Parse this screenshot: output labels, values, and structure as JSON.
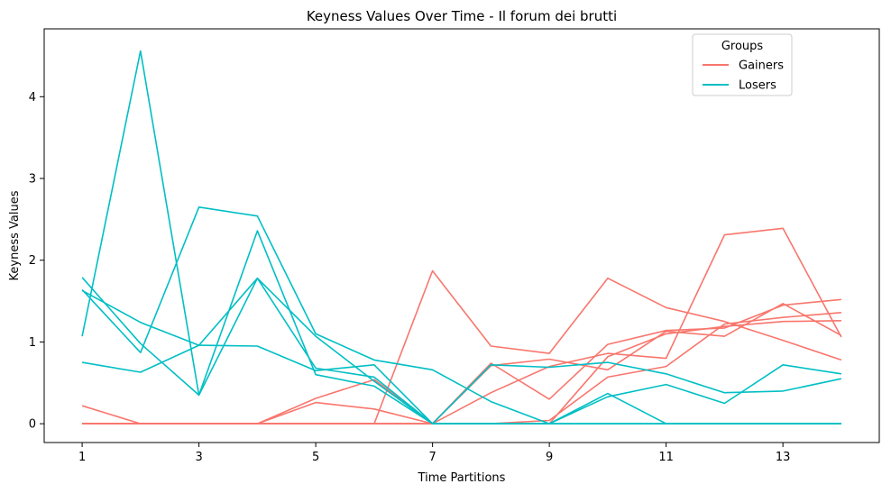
{
  "chart_data": {
    "type": "line",
    "title": "Keyness Values Over Time - Il forum dei brutti",
    "xlabel": "Time Partitions",
    "ylabel": "Keyness Values",
    "x": [
      1,
      2,
      3,
      4,
      5,
      6,
      7,
      8,
      9,
      10,
      11,
      12,
      13,
      14
    ],
    "xticks": [
      "1",
      "3",
      "5",
      "7",
      "9",
      "11",
      "13"
    ],
    "yticks": [
      "0",
      "1",
      "2",
      "3",
      "4"
    ],
    "xlim": [
      0.35,
      14.65
    ],
    "ylim": [
      -0.23,
      4.83
    ],
    "grid": false,
    "legend": {
      "title": "Groups",
      "position": "top-right",
      "entries": [
        {
          "label": "Gainers",
          "color": "#f8766d"
        },
        {
          "label": "Losers",
          "color": "#00bfc4"
        }
      ]
    },
    "series": [
      {
        "group": "Gainers",
        "values": [
          0,
          0,
          0,
          0,
          0,
          0,
          1.87,
          0.95,
          0.86,
          1.78,
          1.42,
          1.25,
          1.02,
          0.78
        ]
      },
      {
        "group": "Gainers",
        "values": [
          0.22,
          0,
          0,
          0,
          0.26,
          0.18,
          0,
          0.38,
          0.7,
          0.86,
          0.8,
          2.31,
          2.39,
          1.06
        ]
      },
      {
        "group": "Gainers",
        "values": [
          0,
          0,
          0,
          0,
          0.31,
          0.54,
          0,
          0.74,
          0.3,
          0.97,
          1.14,
          1.17,
          1.45,
          1.52
        ]
      },
      {
        "group": "Gainers",
        "values": [
          0,
          0,
          0,
          0,
          0,
          0,
          0,
          0,
          0.04,
          0.57,
          0.7,
          1.22,
          1.3,
          1.36
        ]
      },
      {
        "group": "Gainers",
        "values": [
          0,
          0,
          0,
          0,
          0,
          0,
          0,
          0.71,
          0.79,
          0.66,
          1.13,
          1.07,
          1.47,
          1.08
        ]
      },
      {
        "group": "Gainers",
        "values": [
          0,
          0,
          0,
          0,
          0,
          0,
          0,
          0,
          0,
          0.82,
          1.1,
          1.19,
          1.25,
          1.26
        ]
      },
      {
        "group": "Losers",
        "values": [
          1.07,
          4.56,
          0.35,
          1.78,
          1.07,
          0.52,
          0,
          0,
          0,
          0,
          0,
          0,
          0,
          0
        ]
      },
      {
        "group": "Losers",
        "values": [
          1.64,
          0.87,
          2.65,
          2.54,
          1.1,
          0.78,
          0.66,
          0.27,
          0,
          0.33,
          0.48,
          0.25,
          0.72,
          0.61
        ]
      },
      {
        "group": "Losers",
        "values": [
          1.63,
          1.24,
          0.96,
          0.95,
          0.65,
          0.72,
          0,
          0.72,
          0.69,
          0.75,
          0.61,
          0.38,
          0.4,
          0.55
        ]
      },
      {
        "group": "Losers",
        "values": [
          1.79,
          0.98,
          0.35,
          2.36,
          0.6,
          0.46,
          0,
          0,
          0,
          0.37,
          0,
          0,
          0,
          0
        ]
      },
      {
        "group": "Losers",
        "values": [
          0.75,
          0.63,
          0.96,
          1.78,
          0.68,
          0.57,
          0,
          0,
          0,
          0,
          0,
          0,
          0,
          0
        ]
      }
    ]
  }
}
